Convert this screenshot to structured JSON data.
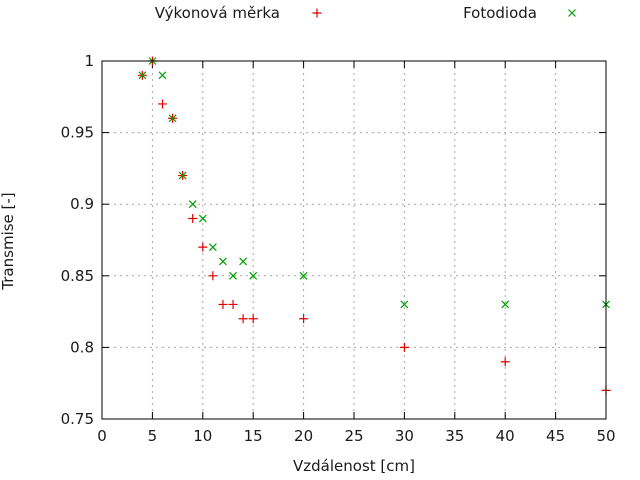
{
  "chart_data": {
    "type": "scatter",
    "title": "",
    "xlabel": "Vzdálenost [cm]",
    "ylabel": "Transmise [-]",
    "xlim": [
      0,
      50
    ],
    "ylim": [
      0.75,
      1.0
    ],
    "x_ticks": [
      0,
      5,
      10,
      15,
      20,
      25,
      30,
      35,
      40,
      45,
      50
    ],
    "y_ticks": [
      0.75,
      0.8,
      0.85,
      0.9,
      0.95,
      1
    ],
    "x_tick_labels": [
      "0",
      "5",
      "10",
      "15",
      "20",
      "25",
      "30",
      "35",
      "40",
      "45",
      "50"
    ],
    "y_tick_labels": [
      "0.75",
      "0.8",
      "0.85",
      "0.9",
      "0.95",
      "1"
    ],
    "grid": true,
    "grid_color": "#a7a7a7",
    "axis_color": "#000000",
    "text_color": "#1a1a1a",
    "legend_position": "top-outside-horizontal",
    "series": [
      {
        "name": "Výkonová měrka",
        "marker": "plus",
        "color": "#e10000",
        "points": [
          [
            4,
            0.99
          ],
          [
            5,
            1.0
          ],
          [
            6,
            0.97
          ],
          [
            7,
            0.96
          ],
          [
            8,
            0.92
          ],
          [
            9,
            0.89
          ],
          [
            10,
            0.87
          ],
          [
            11,
            0.85
          ],
          [
            12,
            0.83
          ],
          [
            13,
            0.83
          ],
          [
            14,
            0.82
          ],
          [
            15,
            0.82
          ],
          [
            20,
            0.82
          ],
          [
            30,
            0.8
          ],
          [
            40,
            0.79
          ],
          [
            50,
            0.77
          ]
        ]
      },
      {
        "name": "Fotodioda",
        "marker": "cross",
        "color": "#00a000",
        "points": [
          [
            4,
            0.99
          ],
          [
            5,
            1.0
          ],
          [
            6,
            0.99
          ],
          [
            7,
            0.96
          ],
          [
            8,
            0.92
          ],
          [
            9,
            0.9
          ],
          [
            10,
            0.89
          ],
          [
            11,
            0.87
          ],
          [
            12,
            0.86
          ],
          [
            13,
            0.85
          ],
          [
            14,
            0.86
          ],
          [
            15,
            0.85
          ],
          [
            20,
            0.85
          ],
          [
            30,
            0.83
          ],
          [
            40,
            0.83
          ],
          [
            50,
            0.83
          ]
        ]
      }
    ]
  }
}
